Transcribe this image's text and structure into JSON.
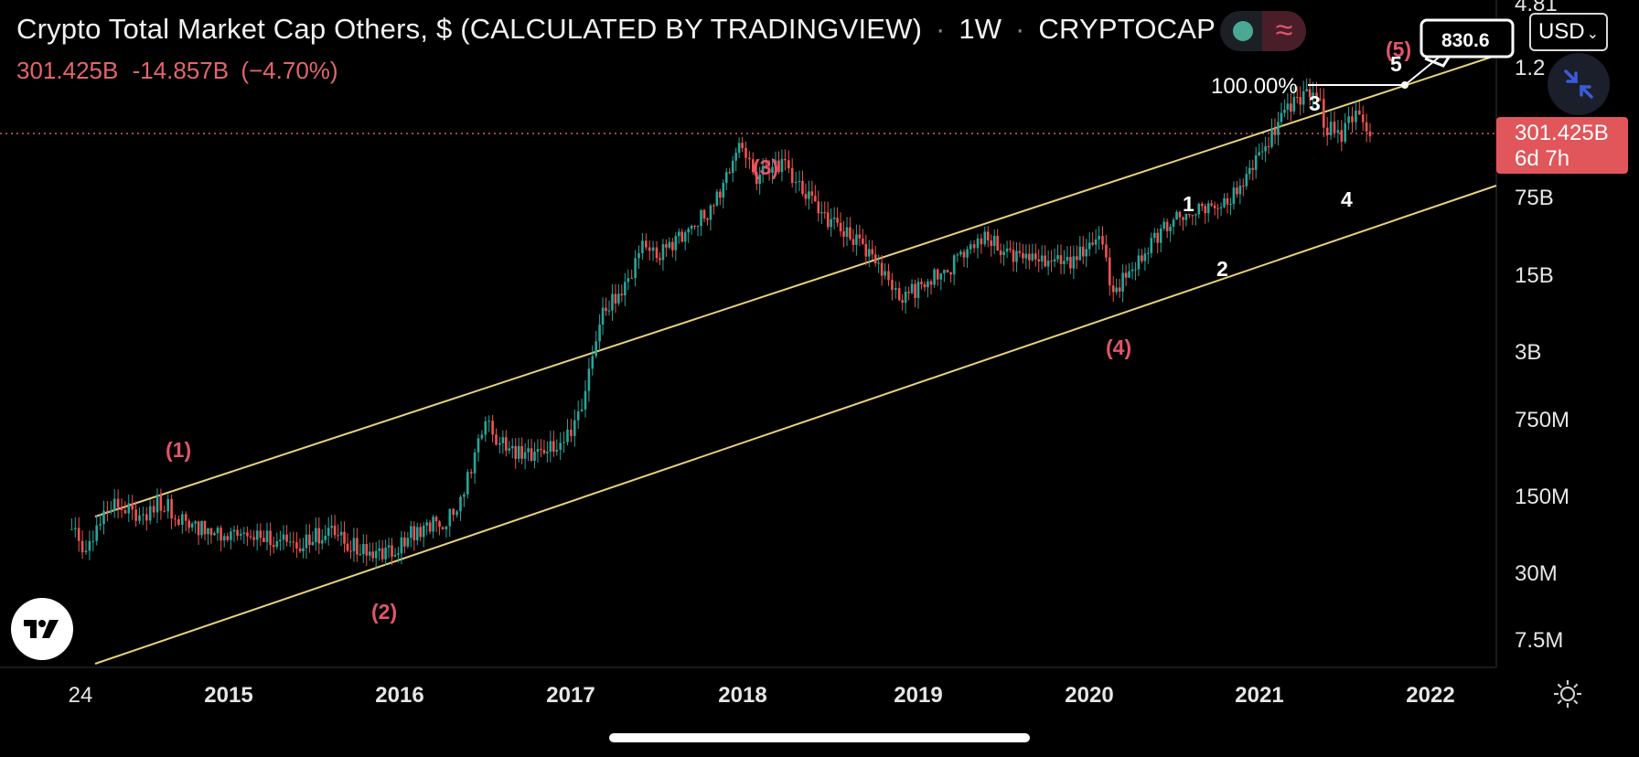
{
  "header": {
    "title": "Crypto Total Market Cap Others, $ (CALCULATED BY TRADINGVIEW)",
    "interval": "1W",
    "exchange": "CRYPTOCAP",
    "separator": "·",
    "price": "301.425B",
    "change": "-14.857B",
    "change_pct": "(−4.70%)"
  },
  "currency": {
    "label": "USD",
    "chevron": "⌄"
  },
  "price_tag": {
    "value": "301.425B",
    "countdown": "6d 7h"
  },
  "colors": {
    "up": "#26a69a",
    "down": "#ef5350",
    "channel": "#e8d27a",
    "wave_primary": "#e0566a",
    "wave_minor": "#ffffff",
    "price_line": "#e0566a",
    "background": "#000000",
    "indicator_dot": "#4aa894"
  },
  "icons": [
    "tradingview-logo-icon",
    "collapse-icon",
    "settings-gear-icon",
    "wave-indicator-icon"
  ],
  "drawing": {
    "fib_label": "100.00%",
    "callout_value": "830.6"
  },
  "chart_data": {
    "type": "candlestick",
    "title": "Crypto Total Market Cap Others, $ (CALCULATED BY TRADINGVIEW)",
    "timeframe": "1W",
    "y_scale": "log",
    "y_tick_labels": [
      "4.81",
      "1.2",
      "75B",
      "15B",
      "3B",
      "750M",
      "150M",
      "30M",
      "7.5M"
    ],
    "x_tick_labels": [
      "24",
      "2015",
      "2016",
      "2017",
      "2018",
      "2019",
      "2020",
      "2021",
      "2022"
    ],
    "last_price": "301.425B",
    "series_close": [
      [
        "2014-02",
        0.075
      ],
      [
        "2014-03",
        0.045
      ],
      [
        "2014-04",
        0.095
      ],
      [
        "2014-05",
        0.12
      ],
      [
        "2014-06",
        0.11
      ],
      [
        "2014-07",
        0.09
      ],
      [
        "2014-08",
        0.13
      ],
      [
        "2014-09",
        0.11
      ],
      [
        "2014-10",
        0.085
      ],
      [
        "2014-12",
        0.07
      ],
      [
        "2015-03",
        0.065
      ],
      [
        "2015-06",
        0.055
      ],
      [
        "2015-08",
        0.075
      ],
      [
        "2015-10",
        0.05
      ],
      [
        "2015-12",
        0.045
      ],
      [
        "2016-02",
        0.07
      ],
      [
        "2016-04",
        0.09
      ],
      [
        "2016-05",
        0.12
      ],
      [
        "2016-06",
        0.25
      ],
      [
        "2016-07",
        0.7
      ],
      [
        "2016-08",
        0.45
      ],
      [
        "2016-10",
        0.35
      ],
      [
        "2016-12",
        0.4
      ],
      [
        "2017-01",
        0.6
      ],
      [
        "2017-02",
        1.2
      ],
      [
        "2017-03",
        6
      ],
      [
        "2017-05",
        12
      ],
      [
        "2017-06",
        28
      ],
      [
        "2017-07",
        22
      ],
      [
        "2017-09",
        35
      ],
      [
        "2017-11",
        60
      ],
      [
        "2018-01",
        220
      ],
      [
        "2018-02",
        110
      ],
      [
        "2018-04",
        150
      ],
      [
        "2018-05",
        90
      ],
      [
        "2018-07",
        45
      ],
      [
        "2018-09",
        30
      ],
      [
        "2018-11",
        15
      ],
      [
        "2018-12",
        9
      ],
      [
        "2019-02",
        12
      ],
      [
        "2019-05",
        25
      ],
      [
        "2019-06",
        32
      ],
      [
        "2019-08",
        22
      ],
      [
        "2019-10",
        20
      ],
      [
        "2019-12",
        18
      ],
      [
        "2020-02",
        35
      ],
      [
        "2020-03",
        10
      ],
      [
        "2020-05",
        22
      ],
      [
        "2020-07",
        45
      ],
      [
        "2020-09",
        55
      ],
      [
        "2020-11",
        65
      ],
      [
        "2021-01",
        150
      ],
      [
        "2021-03",
        450
      ],
      [
        "2021-05",
        700
      ],
      [
        "2021-06",
        300
      ],
      [
        "2021-07",
        270
      ],
      [
        "2021-08",
        420
      ],
      [
        "2021-09",
        301.425
      ]
    ],
    "wave_labels_major": [
      "(1)",
      "(2)",
      "(3)",
      "(4)",
      "(5)"
    ],
    "wave_labels_minor": [
      "1",
      "2",
      "3",
      "4",
      "5"
    ],
    "channel": "ascending parallel channel",
    "annotations": [
      "100.00%",
      "830.6"
    ]
  }
}
